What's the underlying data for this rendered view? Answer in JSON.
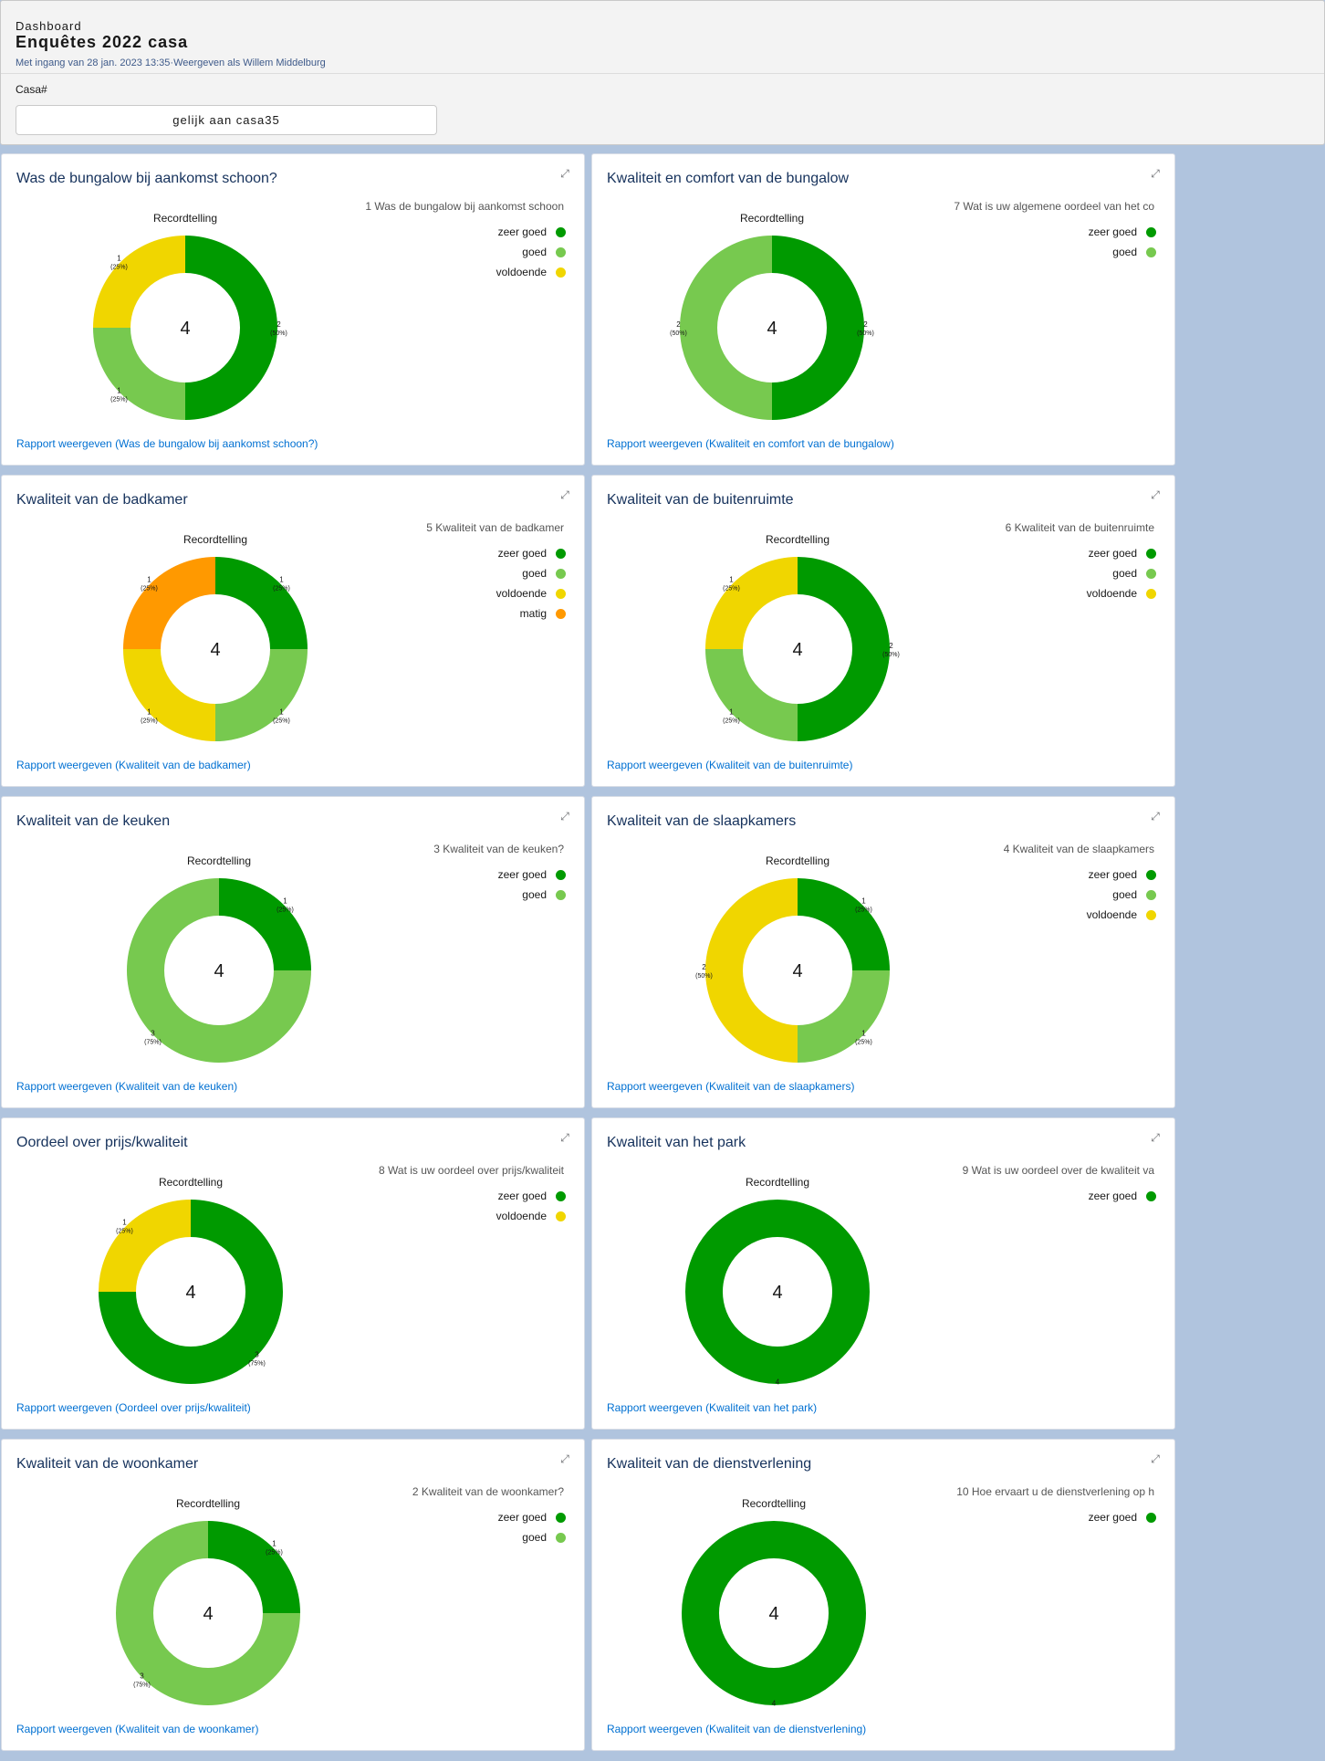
{
  "header": {
    "breadcrumb": "Dashboard",
    "title": "Enquêtes 2022 casa",
    "meta": "Met ingang van 28 jan. 2023 13:35·Weergeven als Willem Middelburg",
    "filter_label": "Casa#",
    "filter_value": "gelijk aan casa35"
  },
  "colors": {
    "zeer goed": "#009a00",
    "goed": "#77c94f",
    "voldoende": "#f0d600",
    "matig": "#ff9900"
  },
  "chart_data": [
    {
      "type": "pie",
      "title": "Was de bungalow bij aankomst schoon?",
      "chart_title": "Recordtelling",
      "legend_title": "1 Was de bungalow bij aankomst schoon",
      "total": "4",
      "slices": [
        {
          "label": "zeer goed",
          "value": 2,
          "pct": "50%"
        },
        {
          "label": "goed",
          "value": 1,
          "pct": "25%"
        },
        {
          "label": "voldoende",
          "value": 1,
          "pct": "25%"
        }
      ],
      "link": "Rapport weergeven (Was de bungalow bij aankomst schoon?)"
    },
    {
      "type": "pie",
      "title": "Kwaliteit en comfort van de bungalow",
      "chart_title": "Recordtelling",
      "legend_title": "7 Wat is uw  algemene oordeel van het co",
      "total": "4",
      "slices": [
        {
          "label": "zeer goed",
          "value": 2,
          "pct": "50%"
        },
        {
          "label": "goed",
          "value": 2,
          "pct": "50%"
        }
      ],
      "link": "Rapport weergeven (Kwaliteit en comfort van de bungalow)"
    },
    {
      "type": "pie",
      "title": "Kwaliteit van de badkamer",
      "chart_title": "Recordtelling",
      "legend_title": "5 Kwaliteit van de badkamer",
      "total": "4",
      "slices": [
        {
          "label": "zeer goed",
          "value": 1,
          "pct": "25%"
        },
        {
          "label": "goed",
          "value": 1,
          "pct": "25%"
        },
        {
          "label": "voldoende",
          "value": 1,
          "pct": "25%"
        },
        {
          "label": "matig",
          "value": 1,
          "pct": "25%"
        }
      ],
      "link": "Rapport weergeven (Kwaliteit van de badkamer)"
    },
    {
      "type": "pie",
      "title": "Kwaliteit van de buitenruimte",
      "chart_title": "Recordtelling",
      "legend_title": "6 Kwaliteit van de buitenruimte",
      "total": "4",
      "slices": [
        {
          "label": "zeer goed",
          "value": 2,
          "pct": "50%"
        },
        {
          "label": "goed",
          "value": 1,
          "pct": "25%"
        },
        {
          "label": "voldoende",
          "value": 1,
          "pct": "25%"
        }
      ],
      "link": "Rapport weergeven (Kwaliteit van de buitenruimte)"
    },
    {
      "type": "pie",
      "title": "Kwaliteit van de keuken",
      "chart_title": "Recordtelling",
      "legend_title": "3 Kwaliteit van de keuken?",
      "total": "4",
      "slices": [
        {
          "label": "zeer goed",
          "value": 1,
          "pct": "25%"
        },
        {
          "label": "goed",
          "value": 3,
          "pct": "75%"
        }
      ],
      "link": "Rapport weergeven (Kwaliteit van de keuken)"
    },
    {
      "type": "pie",
      "title": "Kwaliteit van de slaapkamers",
      "chart_title": "Recordtelling",
      "legend_title": "4 Kwaliteit van de slaapkamers",
      "total": "4",
      "slices": [
        {
          "label": "zeer goed",
          "value": 1,
          "pct": "25%"
        },
        {
          "label": "goed",
          "value": 1,
          "pct": "25%"
        },
        {
          "label": "voldoende",
          "value": 2,
          "pct": "50%"
        }
      ],
      "link": "Rapport weergeven (Kwaliteit van de slaapkamers)"
    },
    {
      "type": "pie",
      "title": "Oordeel over prijs/kwaliteit",
      "chart_title": "Recordtelling",
      "legend_title": "8 Wat is uw oordeel over prijs/kwaliteit",
      "total": "4",
      "slices": [
        {
          "label": "zeer goed",
          "value": 3,
          "pct": "75%"
        },
        {
          "label": "voldoende",
          "value": 1,
          "pct": "25%"
        }
      ],
      "link": "Rapport weergeven (Oordeel over prijs/kwaliteit)"
    },
    {
      "type": "pie",
      "title": "Kwaliteit van het park",
      "chart_title": "Recordtelling",
      "legend_title": "9 Wat is uw oordeel over de kwaliteit va",
      "total": "4",
      "slices": [
        {
          "label": "zeer goed",
          "value": 4,
          "pct": "100%"
        }
      ],
      "link": "Rapport weergeven (Kwaliteit van het park)"
    },
    {
      "type": "pie",
      "title": "Kwaliteit van de woonkamer",
      "chart_title": "Recordtelling",
      "legend_title": "2 Kwaliteit van de woonkamer?",
      "total": "4",
      "slices": [
        {
          "label": "zeer goed",
          "value": 1,
          "pct": "25%"
        },
        {
          "label": "goed",
          "value": 3,
          "pct": "75%"
        }
      ],
      "link": "Rapport weergeven (Kwaliteit van de woonkamer)"
    },
    {
      "type": "pie",
      "title": "Kwaliteit van de dienstverlening",
      "chart_title": "Recordtelling",
      "legend_title": "10 Hoe ervaart u de dienstverlening op h",
      "total": "4",
      "slices": [
        {
          "label": "zeer goed",
          "value": 4,
          "pct": "100%"
        }
      ],
      "link": "Rapport weergeven (Kwaliteit van de dienstverlening)"
    }
  ]
}
